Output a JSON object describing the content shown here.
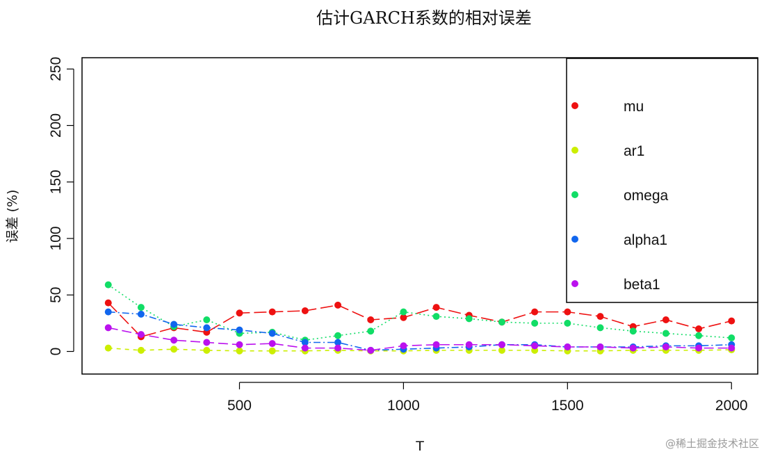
{
  "chart_data": {
    "type": "line",
    "title": "估计GARCH系数的相对误差",
    "xlabel": "T",
    "ylabel": "误差 (%)",
    "xlim": [
      20,
      2080
    ],
    "ylim": [
      -20,
      260
    ],
    "xticks": [
      500,
      1000,
      1500,
      2000
    ],
    "yticks": [
      0,
      50,
      100,
      150,
      200,
      250
    ],
    "x": [
      100,
      200,
      300,
      400,
      500,
      600,
      700,
      800,
      900,
      1000,
      1100,
      1200,
      1300,
      1400,
      1500,
      1600,
      1700,
      1800,
      1900,
      2000
    ],
    "legend_position": "top-right",
    "series": [
      {
        "name": "mu",
        "color": "#ee1111",
        "dash": "18,6",
        "values": [
          43,
          13,
          21,
          17,
          34,
          35,
          36,
          41,
          28,
          30,
          39,
          32,
          26,
          35,
          35,
          31,
          22,
          28,
          20,
          27
        ]
      },
      {
        "name": "ar1",
        "color": "#ccee00",
        "dash": "6,6",
        "values": [
          3,
          1,
          2,
          1,
          0.5,
          0.5,
          0.5,
          1,
          0.5,
          0.5,
          1,
          1,
          1,
          1,
          0.5,
          0.5,
          1,
          1,
          1,
          1.5
        ]
      },
      {
        "name": "omega",
        "color": "#11dd66",
        "dash": "2,4",
        "values": [
          59,
          39,
          22,
          28,
          16,
          17,
          10,
          14,
          18,
          35,
          31,
          29,
          26,
          25,
          25,
          21,
          18,
          16,
          14,
          12
        ]
      },
      {
        "name": "alpha1",
        "color": "#1166ee",
        "dash": "10,4,2,4",
        "values": [
          35,
          33,
          24,
          21,
          19,
          16,
          8,
          8,
          1,
          2,
          3,
          4,
          6,
          6,
          4,
          4,
          4,
          5,
          5,
          6
        ]
      },
      {
        "name": "beta1",
        "color": "#bb11ee",
        "dash": "14,6",
        "values": [
          21,
          15,
          10,
          8,
          6,
          7,
          3,
          3,
          1,
          5,
          6,
          6,
          6,
          5,
          4,
          4,
          3,
          4,
          3,
          3
        ]
      }
    ]
  },
  "watermark": "@稀土掘金技术社区"
}
